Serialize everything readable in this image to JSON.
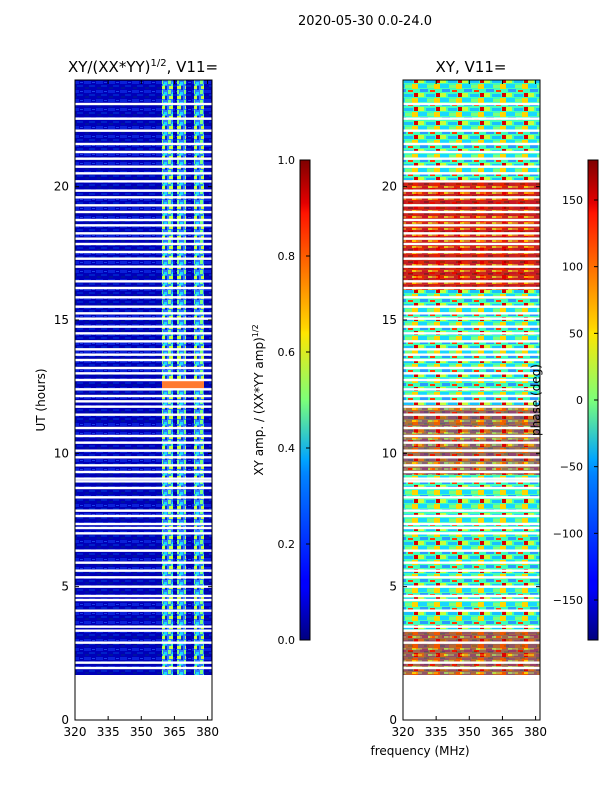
{
  "figure": {
    "suptitle": "2020-05-30 0.0-24.0",
    "xlabel": "frequency (MHz)"
  },
  "chart_data": [
    {
      "type": "heatmap",
      "title": "XY/(XX*YY)^1/2, V11=",
      "title_main": "XY/(XX*YY)",
      "title_sup": "1/2",
      "title_tail": ", V11=",
      "ylabel": "UT (hours)",
      "xlim": [
        320,
        382
      ],
      "ylim": [
        0,
        24
      ],
      "xticks": [
        320,
        335,
        350,
        365,
        380
      ],
      "yticks": [
        0,
        5,
        10,
        15,
        20
      ],
      "data_extent_ut": [
        1.7,
        24.0
      ],
      "colorbar": {
        "label": "XY amp. / (XX*YY amp)^1/2",
        "label_main": "XY amp. / (XX*YY amp)",
        "label_sup": "1/2",
        "range": [
          0.0,
          1.0
        ],
        "ticks": [
          "0.0",
          "0.2",
          "0.4",
          "0.6",
          "0.8",
          "1.0"
        ]
      }
    },
    {
      "type": "heatmap",
      "title": "XY, V11=",
      "xlim": [
        320,
        382
      ],
      "ylim": [
        0,
        24
      ],
      "xticks": [
        320,
        335,
        350,
        365,
        380
      ],
      "yticks": [
        0,
        5,
        10,
        15,
        20
      ],
      "data_extent_ut": [
        1.7,
        24.0
      ],
      "colorbar": {
        "label": "phase (deg)",
        "range": [
          -180,
          180
        ],
        "ticks": [
          "−150",
          "−100",
          "−50",
          "0",
          "50",
          "100",
          "150"
        ],
        "tick_values": [
          -150,
          -100,
          -50,
          0,
          50,
          100,
          150
        ]
      }
    }
  ],
  "flag_rows_ut": [
    1.95,
    2.15,
    2.9,
    3.35,
    3.5,
    4.1,
    4.5,
    4.65,
    5.0,
    5.35,
    5.6,
    5.9,
    6.35,
    7.0,
    7.2,
    7.35,
    7.65,
    7.85,
    8.35,
    8.7,
    8.95,
    9.05,
    9.3,
    9.55,
    9.85,
    10.1,
    10.4,
    10.65,
    10.95,
    11.45,
    11.75,
    11.95,
    12.15,
    12.4,
    12.75,
    13.0,
    13.2,
    13.5,
    13.7,
    13.9,
    14.2,
    14.5,
    14.75,
    15.05,
    15.25,
    15.5,
    15.85,
    16.2,
    16.45,
    17.0,
    17.3,
    17.55,
    17.85,
    18.05,
    18.25,
    18.55,
    18.75,
    19.05,
    19.3,
    19.6,
    19.85,
    20.2,
    20.5,
    20.75,
    21.05,
    21.3,
    21.6,
    22.1,
    22.55,
    23.1
  ]
}
